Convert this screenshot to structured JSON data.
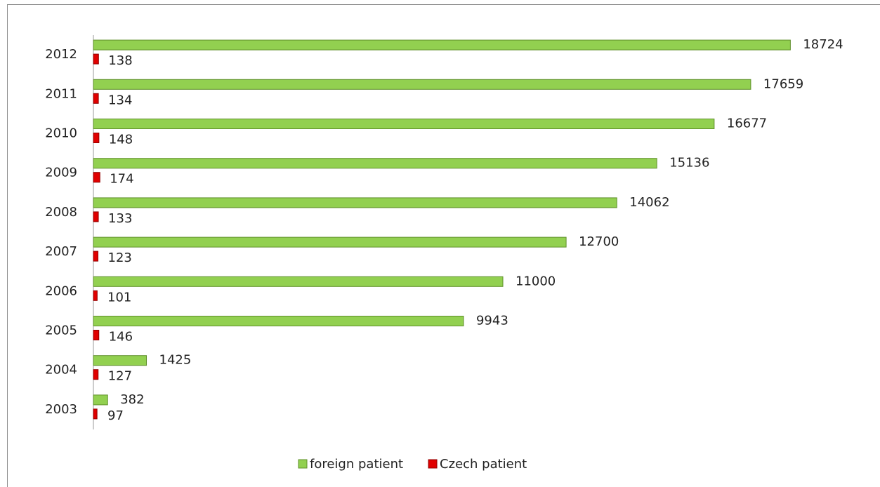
{
  "chart_data": {
    "type": "bar",
    "orientation": "horizontal",
    "categories": [
      "2012",
      "2011",
      "2010",
      "2009",
      "2008",
      "2007",
      "2006",
      "2005",
      "2004",
      "2003"
    ],
    "series": [
      {
        "name": "foreign patient",
        "color": "#92d050",
        "values": [
          18724,
          17659,
          16677,
          15136,
          14062,
          12700,
          11000,
          9943,
          1425,
          382
        ]
      },
      {
        "name": "Czech patient",
        "color": "#e00000",
        "values": [
          138,
          134,
          148,
          174,
          133,
          123,
          101,
          146,
          127,
          97
        ]
      }
    ],
    "xlim": [
      0,
      20000
    ],
    "legend": "bottom"
  }
}
